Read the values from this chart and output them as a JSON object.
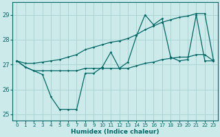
{
  "xlabel": "Humidex (Indice chaleur)",
  "bg_color": "#cceaea",
  "grid_color": "#aad4d4",
  "line_color": "#006666",
  "xlim": [
    -0.5,
    23.5
  ],
  "ylim": [
    24.75,
    29.5
  ],
  "yticks": [
    25,
    26,
    27,
    28,
    29
  ],
  "xticks": [
    0,
    1,
    2,
    3,
    4,
    5,
    6,
    7,
    8,
    9,
    10,
    11,
    12,
    13,
    14,
    15,
    16,
    17,
    18,
    19,
    20,
    21,
    22,
    23
  ],
  "series": [
    [
      27.15,
      26.9,
      26.75,
      26.6,
      25.7,
      25.2,
      25.2,
      25.2,
      26.65,
      26.65,
      26.9,
      27.5,
      26.85,
      27.1,
      28.15,
      29.0,
      28.6,
      28.85,
      27.3,
      27.15,
      27.2,
      29.0,
      27.15,
      27.15
    ],
    [
      27.15,
      26.9,
      26.75,
      26.75,
      26.75,
      26.75,
      26.75,
      26.75,
      26.85,
      26.85,
      26.85,
      26.85,
      26.85,
      26.85,
      26.95,
      27.05,
      27.1,
      27.2,
      27.25,
      27.3,
      27.3,
      27.4,
      27.4,
      27.15
    ],
    [
      27.15,
      27.05,
      27.05,
      27.1,
      27.15,
      27.2,
      27.3,
      27.4,
      27.6,
      27.7,
      27.8,
      27.9,
      27.95,
      28.05,
      28.2,
      28.4,
      28.55,
      28.7,
      28.8,
      28.9,
      28.95,
      29.05,
      29.05,
      27.2
    ]
  ]
}
